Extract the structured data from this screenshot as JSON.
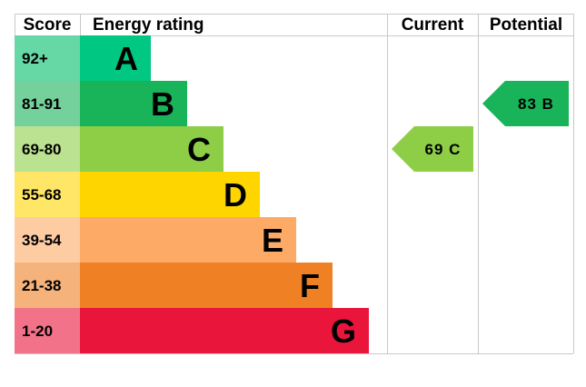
{
  "headers": {
    "score": "Score",
    "rating": "Energy rating",
    "current": "Current",
    "potential": "Potential"
  },
  "chart_data": {
    "type": "bar",
    "bands": [
      {
        "letter": "A",
        "range": "92+",
        "bar_color": "#00c781",
        "score_bg": "#66d8a6"
      },
      {
        "letter": "B",
        "range": "81-91",
        "bar_color": "#19b459",
        "score_bg": "#75d19b"
      },
      {
        "letter": "C",
        "range": "69-80",
        "bar_color": "#8dce46",
        "score_bg": "#bbe290"
      },
      {
        "letter": "D",
        "range": "55-68",
        "bar_color": "#ffd500",
        "score_bg": "#ffe666"
      },
      {
        "letter": "E",
        "range": "39-54",
        "bar_color": "#fcaa65",
        "score_bg": "#fdcca3"
      },
      {
        "letter": "F",
        "range": "21-38",
        "bar_color": "#ef8023",
        "score_bg": "#f5b37b"
      },
      {
        "letter": "G",
        "range": "1-20",
        "bar_color": "#e9153b",
        "score_bg": "#f27389"
      }
    ],
    "current": {
      "value": 69,
      "letter": "C",
      "label": "69 C",
      "color": "#8dce46"
    },
    "potential": {
      "value": 83,
      "letter": "B",
      "label": "83 B",
      "color": "#19b459"
    }
  }
}
